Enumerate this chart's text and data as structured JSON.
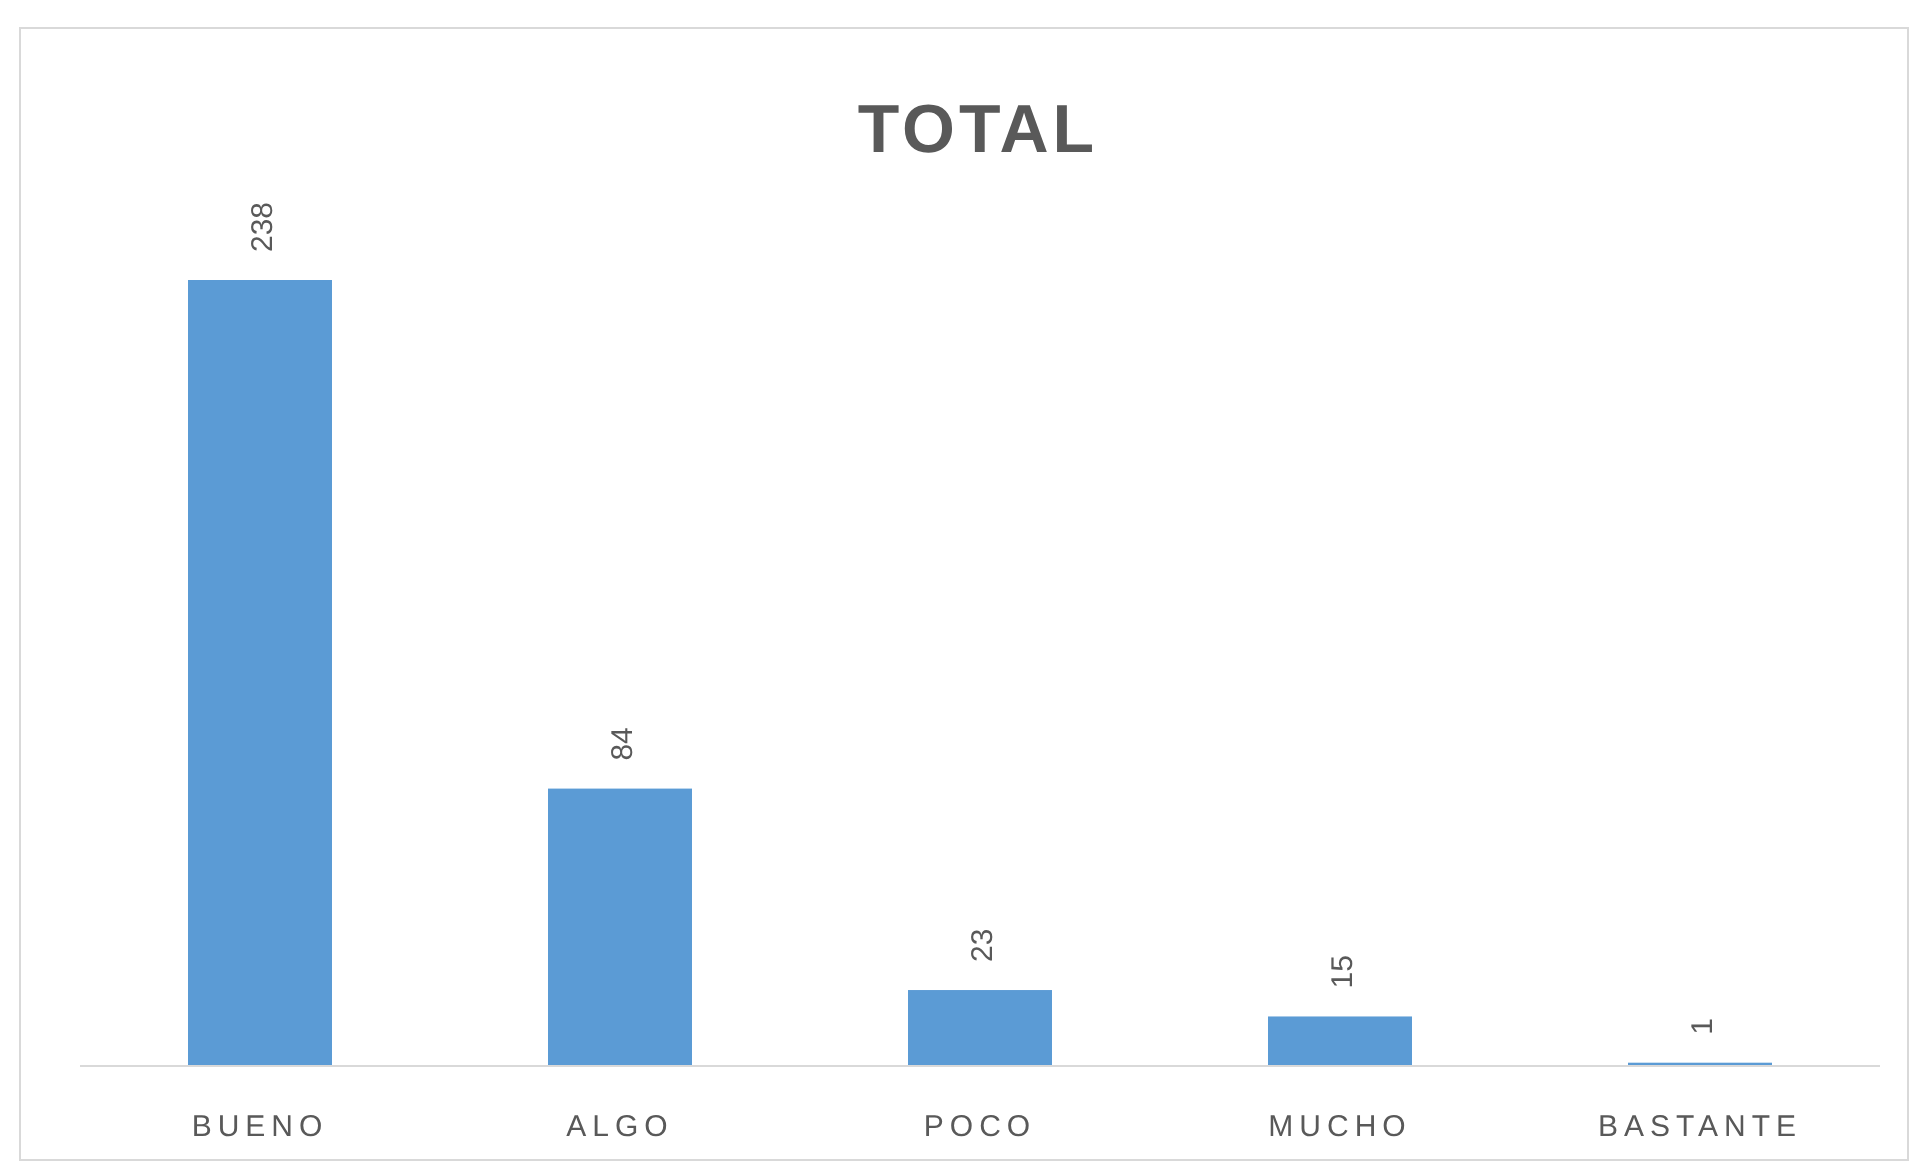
{
  "chart_data": {
    "type": "bar",
    "title": "TOTAL",
    "categories": [
      "BUENO",
      "ALGO",
      "POCO",
      "MUCHO",
      "BASTANTE"
    ],
    "values": [
      238,
      84,
      23,
      15,
      1
    ],
    "color": "#5b9bd5",
    "data_labels": true
  }
}
